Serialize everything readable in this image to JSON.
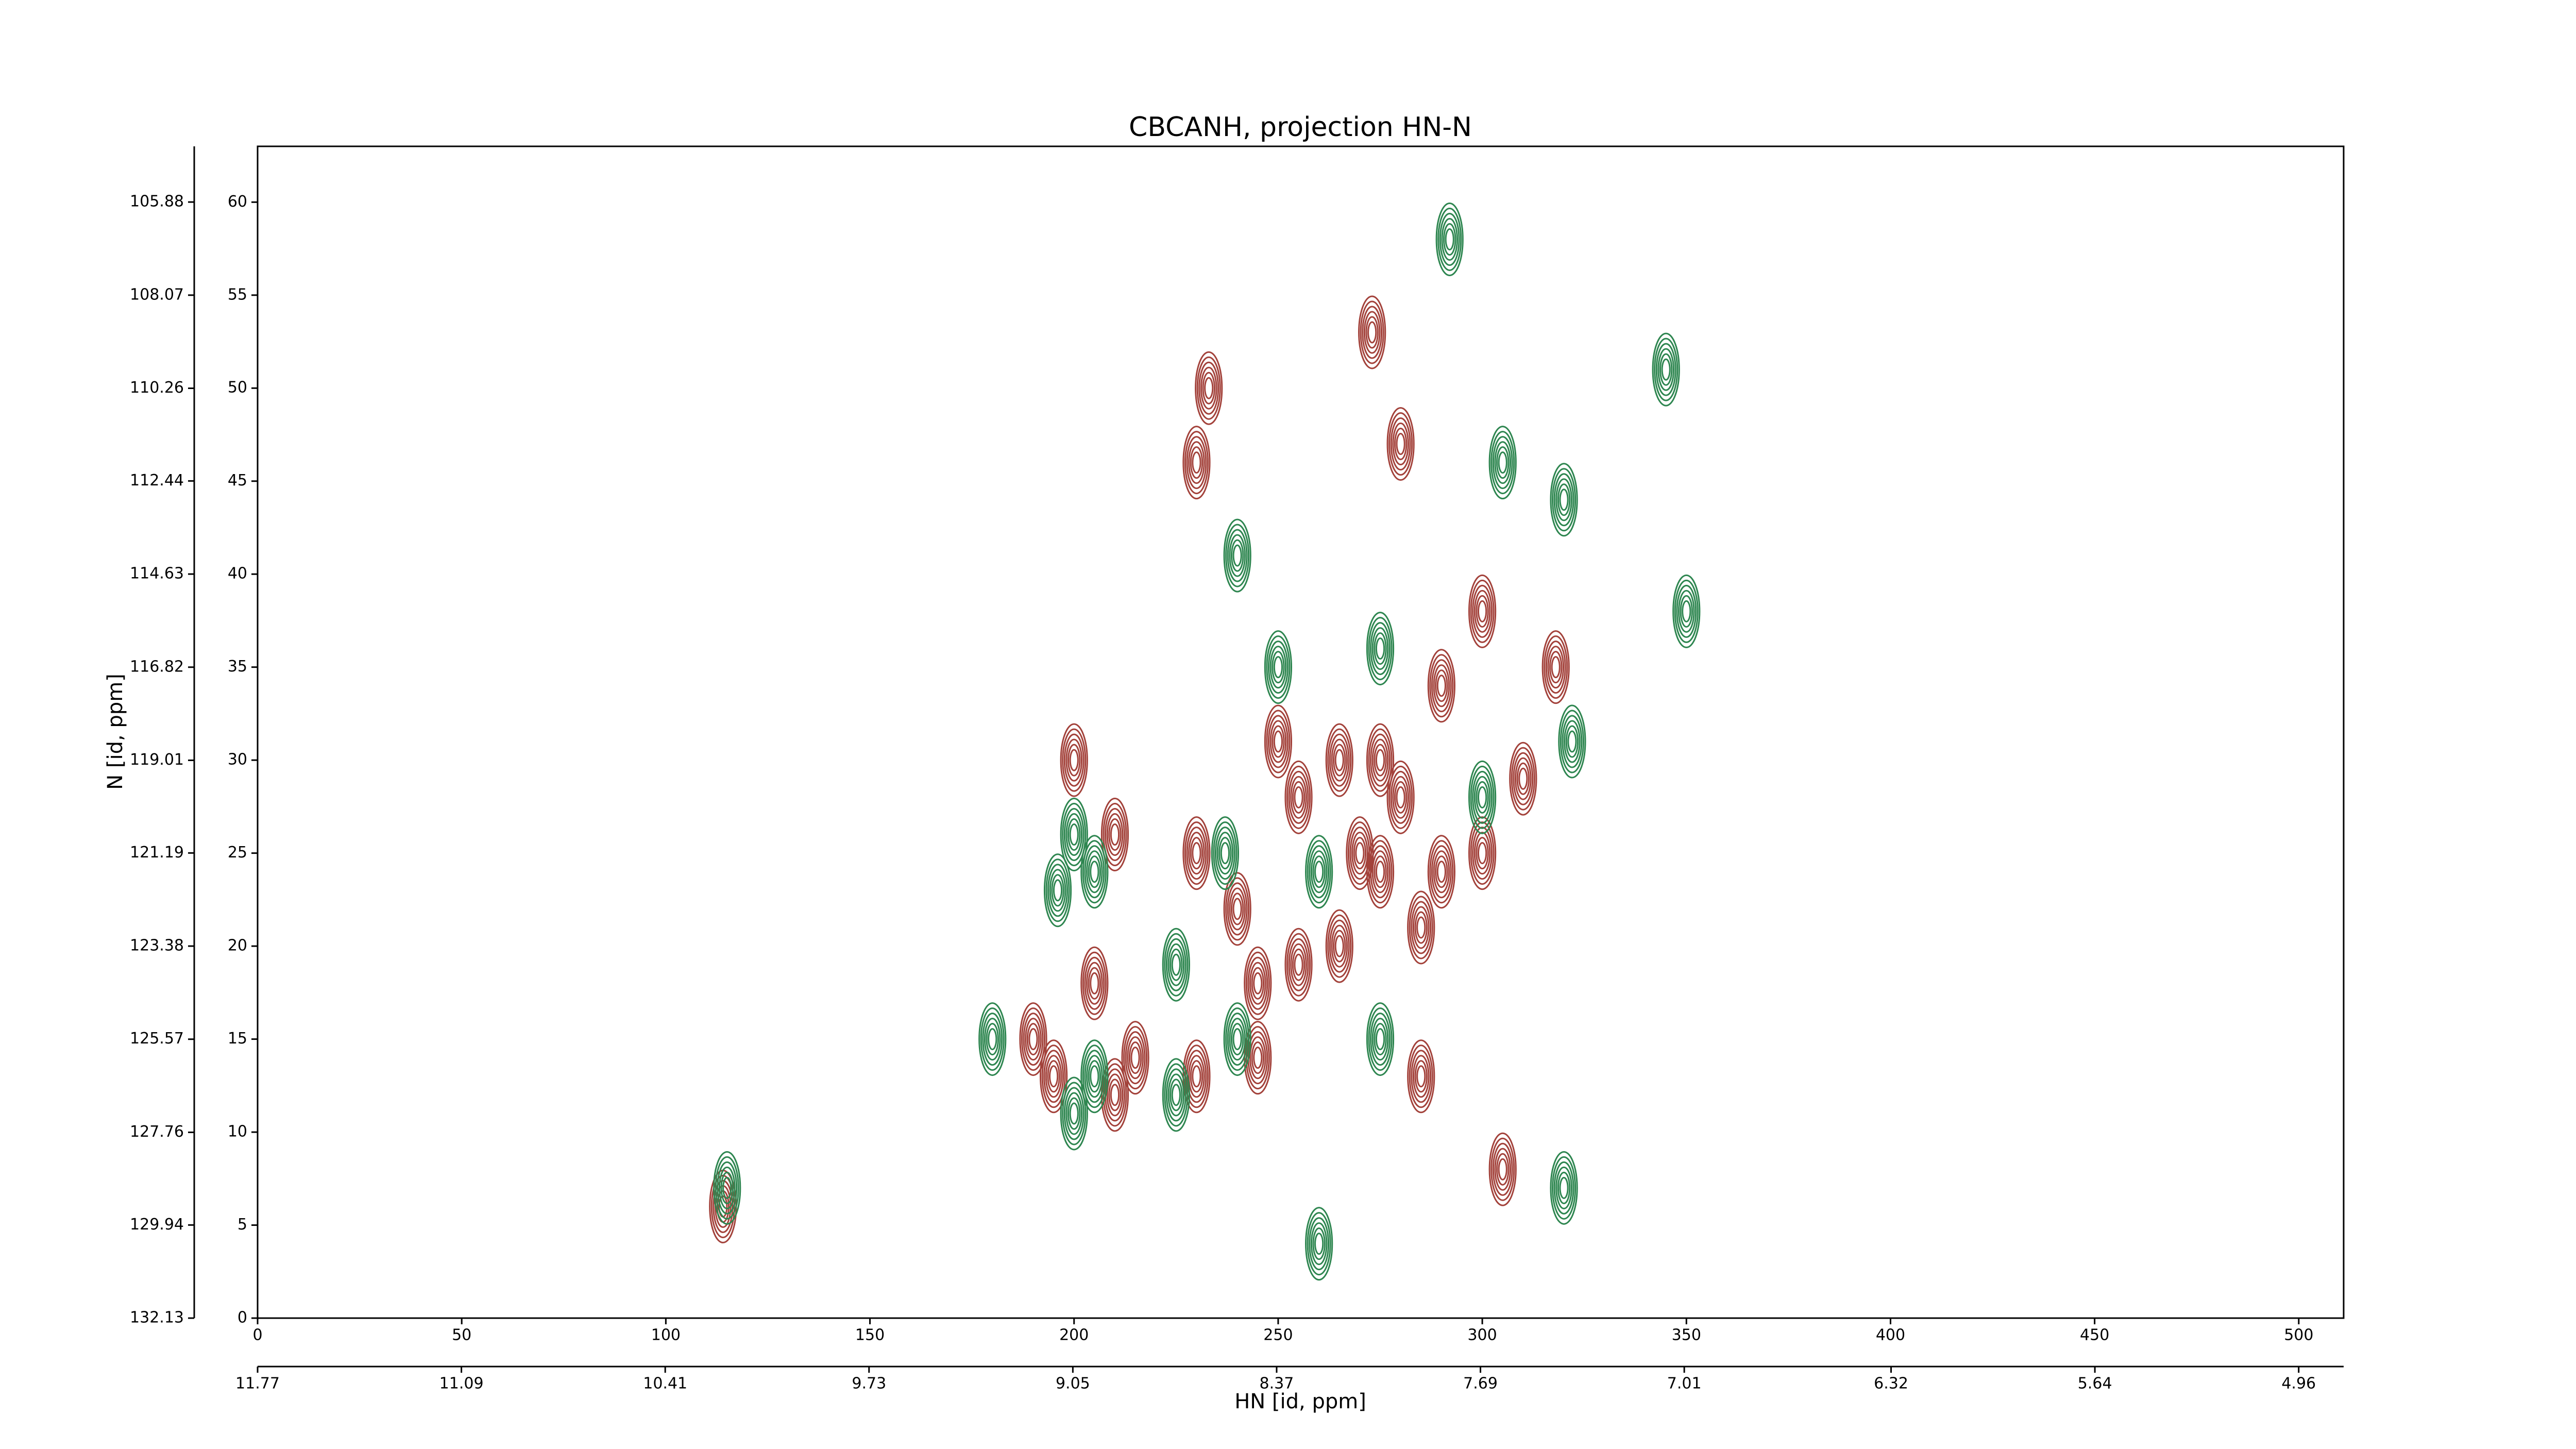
{
  "chart_data": {
    "type": "contour",
    "title": "CBCANH, projection HN-N",
    "xlabel": "HN [id, ppm]",
    "ylabel": "N [id, ppm]",
    "xlim": [
      0,
      511
    ],
    "xticks": [
      0,
      50,
      100,
      150,
      200,
      250,
      300,
      350,
      400,
      450,
      500
    ],
    "ylim": [
      0,
      63
    ],
    "yticks": [
      0,
      5,
      10,
      15,
      20,
      25,
      30,
      35,
      40,
      45,
      50,
      55,
      60
    ],
    "x2lim": [
      11.77,
      4.81
    ],
    "x2ticks": [
      11.77,
      11.09,
      10.41,
      9.73,
      9.05,
      8.37,
      7.69,
      7.01,
      6.32,
      5.64,
      4.96
    ],
    "y2lim": [
      132.13,
      104.57
    ],
    "y2ticks": [
      132.13,
      129.94,
      127.76,
      125.57,
      123.38,
      121.19,
      119.01,
      116.82,
      114.63,
      112.44,
      110.26,
      108.07,
      105.88
    ],
    "series": [
      {
        "color": "#a3423b",
        "x": [
          273,
          233,
          230,
          280,
          300,
          318,
          290,
          265,
          275,
          250,
          255,
          280,
          310,
          300,
          270,
          230,
          210,
          290,
          285,
          265,
          255,
          245,
          240,
          200,
          205,
          190,
          195,
          215,
          210,
          230,
          245,
          285,
          305,
          114,
          275
        ],
        "y": [
          53,
          50,
          46,
          47,
          38,
          35,
          34,
          30,
          30,
          31,
          28,
          28,
          29,
          25,
          25,
          25,
          26,
          24,
          21,
          20,
          19,
          18,
          22,
          30,
          18,
          15,
          13,
          14,
          12,
          13,
          14,
          13,
          8,
          6,
          24
        ]
      },
      {
        "color": "#2e8650",
        "x": [
          292,
          345,
          305,
          320,
          240,
          350,
          250,
          275,
          322,
          300,
          200,
          205,
          237,
          260,
          196,
          180,
          205,
          225,
          240,
          275,
          225,
          200,
          260,
          320,
          115
        ],
        "y": [
          58,
          51,
          46,
          44,
          41,
          38,
          35,
          36,
          31,
          28,
          26,
          24,
          25,
          24,
          23,
          15,
          13,
          19,
          15,
          15,
          12,
          11,
          4,
          7,
          7
        ]
      }
    ]
  }
}
